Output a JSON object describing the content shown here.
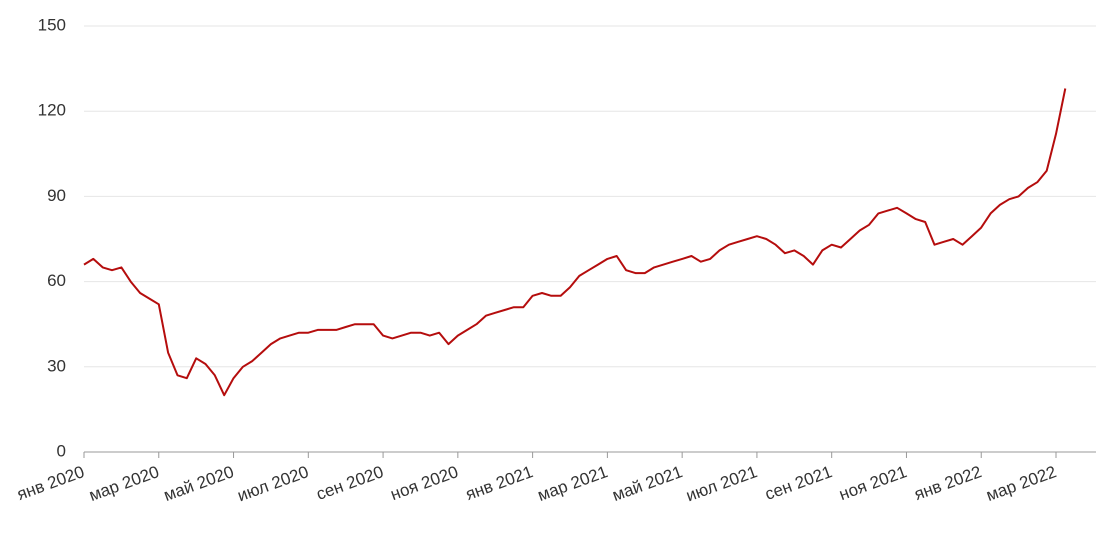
{
  "chart_data": {
    "type": "line",
    "categories": [
      "янв 2020",
      null,
      null,
      null,
      null,
      null,
      null,
      null,
      "мар 2020",
      null,
      null,
      null,
      null,
      null,
      null,
      null,
      "май 2020",
      null,
      null,
      null,
      null,
      null,
      null,
      null,
      "июл 2020",
      null,
      null,
      null,
      null,
      null,
      null,
      null,
      "сен 2020",
      null,
      null,
      null,
      null,
      null,
      null,
      null,
      "ноя 2020",
      null,
      null,
      null,
      null,
      null,
      null,
      null,
      "янв 2021",
      null,
      null,
      null,
      null,
      null,
      null,
      null,
      "мар 2021",
      null,
      null,
      null,
      null,
      null,
      null,
      null,
      "май 2021",
      null,
      null,
      null,
      null,
      null,
      null,
      null,
      "июл 2021",
      null,
      null,
      null,
      null,
      null,
      null,
      null,
      "сен 2021",
      null,
      null,
      null,
      null,
      null,
      null,
      null,
      "ноя 2021",
      null,
      null,
      null,
      null,
      null,
      null,
      null,
      "янв 2022",
      null,
      null,
      null,
      null,
      null,
      null,
      null,
      "мар 2022",
      null
    ],
    "values": [
      66,
      68,
      65,
      64,
      65,
      60,
      56,
      54,
      52,
      35,
      27,
      26,
      33,
      31,
      27,
      20,
      26,
      30,
      32,
      35,
      38,
      40,
      41,
      42,
      42,
      43,
      43,
      43,
      44,
      45,
      45,
      45,
      41,
      40,
      41,
      42,
      42,
      41,
      42,
      38,
      41,
      43,
      45,
      48,
      49,
      50,
      51,
      51,
      55,
      56,
      55,
      55,
      58,
      62,
      64,
      66,
      68,
      69,
      64,
      63,
      63,
      65,
      66,
      67,
      68,
      69,
      67,
      68,
      71,
      73,
      74,
      75,
      76,
      75,
      73,
      70,
      71,
      69,
      66,
      71,
      73,
      72,
      75,
      78,
      80,
      84,
      85,
      86,
      84,
      82,
      81,
      73,
      74,
      75,
      73,
      76,
      79,
      84,
      87,
      89,
      90,
      93,
      95,
      99,
      112,
      128
    ],
    "color": "#b50d0d",
    "ylim": [
      0,
      150
    ],
    "yticks": [
      0,
      30,
      60,
      90,
      120,
      150
    ],
    "grid": true
  }
}
